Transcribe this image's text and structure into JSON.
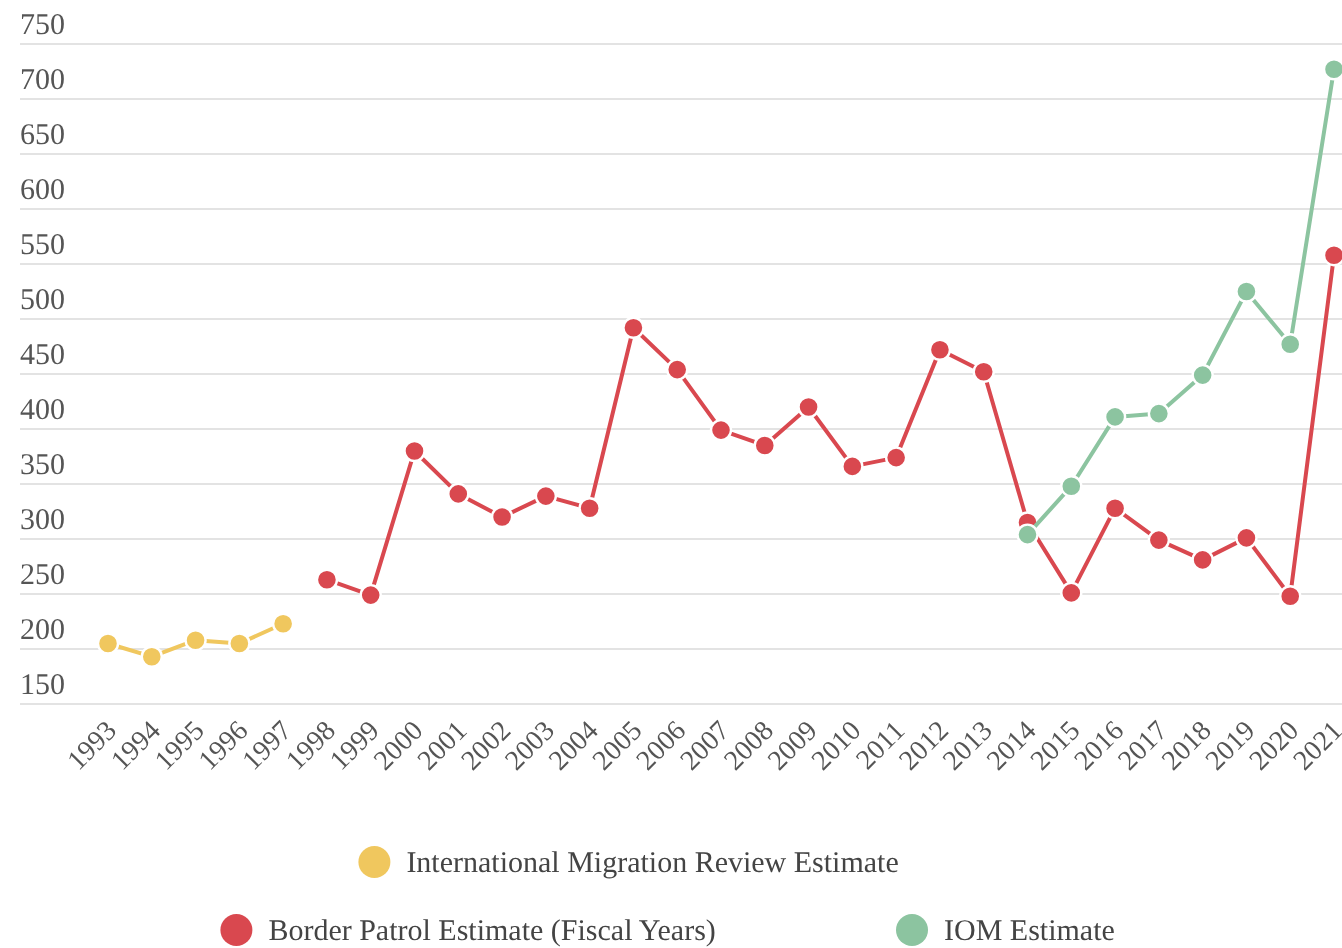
{
  "chart_data": {
    "type": "line",
    "categories": [
      "1993",
      "1994",
      "1995",
      "1996",
      "1997",
      "1998",
      "1999",
      "2000",
      "2001",
      "2002",
      "2003",
      "2004",
      "2005",
      "2006",
      "2007",
      "2008",
      "2009",
      "2010",
      "2011",
      "2012",
      "2013",
      "2014",
      "2015",
      "2016",
      "2017",
      "2018",
      "2019",
      "2020",
      "2021"
    ],
    "series": [
      {
        "name": "International Migration Review Estimate",
        "color": "#f0c75e",
        "values": [
          205,
          193,
          208,
          205,
          223,
          null,
          null,
          null,
          null,
          null,
          null,
          null,
          null,
          null,
          null,
          null,
          null,
          null,
          null,
          null,
          null,
          null,
          null,
          null,
          null,
          null,
          null,
          null,
          null
        ]
      },
      {
        "name": "Border Patrol Estimate (Fiscal Years)",
        "color": "#d9484f",
        "values": [
          null,
          null,
          null,
          null,
          null,
          263,
          249,
          380,
          341,
          320,
          339,
          328,
          492,
          454,
          399,
          385,
          420,
          366,
          374,
          472,
          452,
          315,
          251,
          328,
          299,
          281,
          301,
          248,
          558
        ]
      },
      {
        "name": "IOM Estimate",
        "color": "#8cc4a0",
        "values": [
          null,
          null,
          null,
          null,
          null,
          null,
          null,
          null,
          null,
          null,
          null,
          null,
          null,
          null,
          null,
          null,
          null,
          null,
          null,
          null,
          null,
          304,
          348,
          411,
          414,
          449,
          525,
          477,
          727
        ]
      }
    ],
    "ylim": [
      150,
      750
    ],
    "yticks": [
      150,
      200,
      250,
      300,
      350,
      400,
      450,
      500,
      550,
      600,
      650,
      700,
      750
    ],
    "grid": "y",
    "legend": "bottom",
    "marker": "circle",
    "line_style": "solid"
  }
}
